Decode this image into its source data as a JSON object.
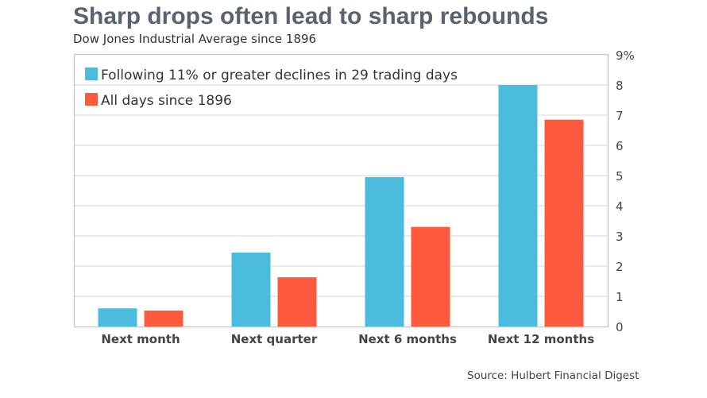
{
  "header": {
    "title": "Sharp drops often lead to sharp rebounds",
    "subtitle": "Dow Jones Industrial Average since 1896"
  },
  "footer": {
    "source": "Source: Hulbert Financial Digest"
  },
  "chart_data": {
    "type": "bar",
    "title": "Sharp drops often lead to sharp rebounds",
    "subtitle": "Dow Jones Industrial Average since 1896",
    "xlabel": "",
    "ylabel": "",
    "categories": [
      "Next month",
      "Next quarter",
      "Next 6 months",
      "Next 12 months"
    ],
    "series": [
      {
        "name": "Following 11% or greater declines in 29 trading days",
        "color": "#4bbbde",
        "values": [
          0.6,
          2.45,
          4.95,
          8.0
        ]
      },
      {
        "name": "All days since 1896",
        "color": "#ff5a3d",
        "values": [
          0.53,
          1.63,
          3.3,
          6.85
        ]
      }
    ],
    "ylim": [
      0,
      9
    ],
    "yticks": [
      "0",
      "1",
      "2",
      "3",
      "4",
      "5",
      "6",
      "7",
      "8",
      "9%"
    ],
    "y_axis_side": "right",
    "grid": true,
    "legend_position": "top-left"
  }
}
